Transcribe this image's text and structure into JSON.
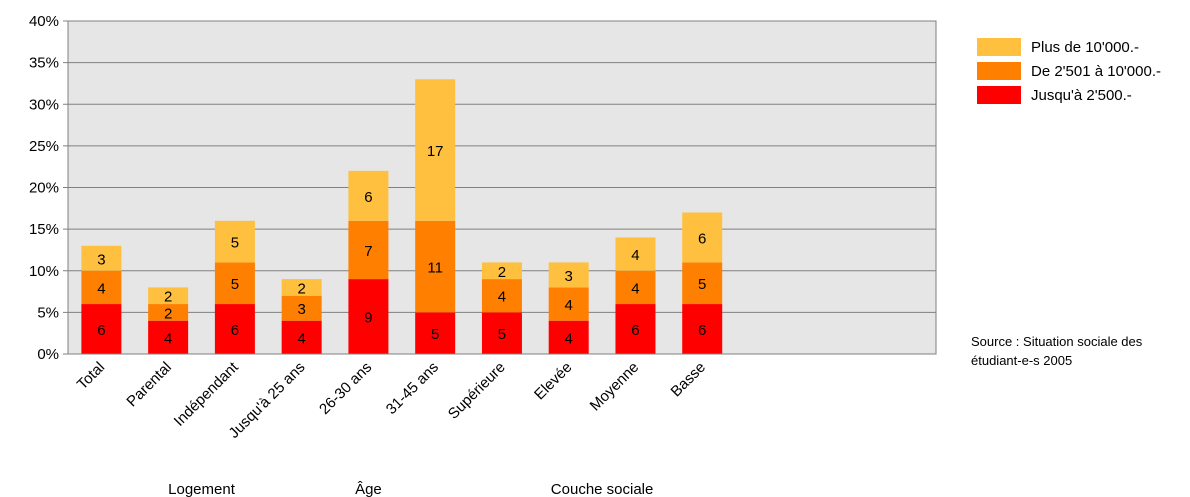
{
  "chart_data": {
    "type": "bar",
    "stacked": true,
    "categories": [
      "Total",
      "Parental",
      "Indépendant",
      "Jusqu'à 25 ans",
      "26-30 ans",
      "31-45 ans",
      "Supérieure",
      "Elevée",
      "Moyenne",
      "Basse"
    ],
    "category_group_index": [
      0,
      1,
      1,
      2,
      2,
      2,
      3,
      3,
      3,
      3
    ],
    "groups": [
      "",
      "Logement",
      "Âge",
      "Couche sociale"
    ],
    "series": [
      {
        "name": "Jusqu'à 2'500.-",
        "color": "#ff0000",
        "values": [
          6,
          4,
          6,
          4,
          9,
          5,
          5,
          4,
          6,
          6
        ]
      },
      {
        "name": "De 2'501 à 10'000.-",
        "color": "#ff8000",
        "values": [
          4,
          2,
          5,
          3,
          7,
          11,
          4,
          4,
          4,
          5
        ]
      },
      {
        "name": "Plus de 10'000.-",
        "color": "#ffc040",
        "values": [
          3,
          2,
          5,
          2,
          6,
          17,
          2,
          3,
          4,
          6
        ]
      }
    ],
    "yticks": [
      "0%",
      "5%",
      "10%",
      "15%",
      "20%",
      "25%",
      "30%",
      "35%",
      "40%"
    ],
    "ylim": [
      0,
      40
    ],
    "grid": true,
    "plot_background": "#e6e6e6",
    "legend_position": "right",
    "source_lines": [
      "Source : Situation sociale des",
      "étudiant-e-s 2005"
    ]
  }
}
